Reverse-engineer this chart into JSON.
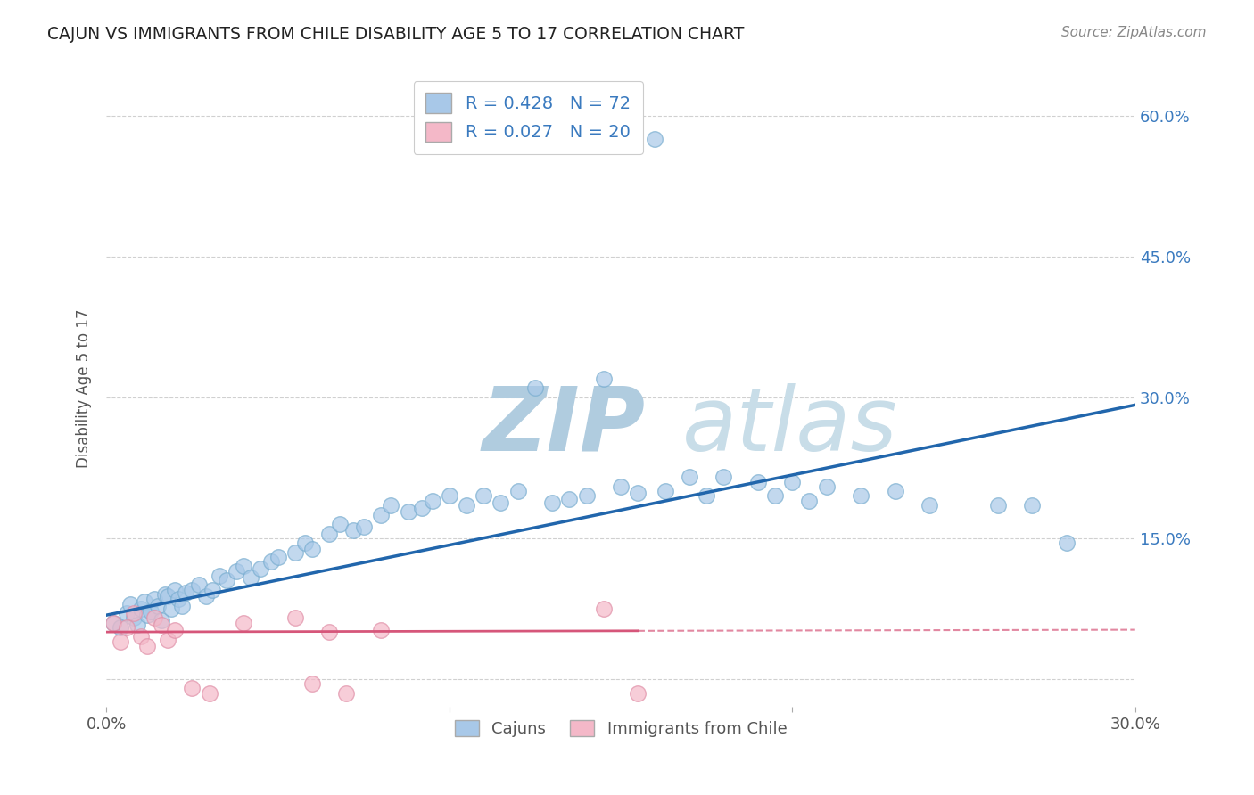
{
  "title": "CAJUN VS IMMIGRANTS FROM CHILE DISABILITY AGE 5 TO 17 CORRELATION CHART",
  "source": "Source: ZipAtlas.com",
  "ylabel_label": "Disability Age 5 to 17",
  "xlim": [
    0,
    0.3
  ],
  "ylim": [
    -0.03,
    0.65
  ],
  "cajun_R": 0.428,
  "cajun_N": 72,
  "chile_R": 0.027,
  "chile_N": 20,
  "cajun_color": "#a8c8e8",
  "cajun_edge_color": "#7aaed0",
  "cajun_line_color": "#2166ac",
  "chile_color": "#f4b8c8",
  "chile_edge_color": "#e090a8",
  "chile_line_color": "#d6567a",
  "watermark": "ZIPatlas",
  "watermark_color_zip": "#b8d4e8",
  "watermark_color_atlas": "#c8dde8",
  "legend_label_cajun": "Cajuns",
  "legend_label_chile": "Immigrants from Chile",
  "background_color": "#ffffff",
  "grid_color": "#d0d0d0",
  "cajun_x": [
    0.002,
    0.004,
    0.006,
    0.007,
    0.008,
    0.009,
    0.01,
    0.011,
    0.012,
    0.013,
    0.014,
    0.015,
    0.016,
    0.017,
    0.018,
    0.019,
    0.02,
    0.021,
    0.022,
    0.023,
    0.025,
    0.027,
    0.029,
    0.031,
    0.033,
    0.035,
    0.038,
    0.04,
    0.042,
    0.045,
    0.048,
    0.05,
    0.055,
    0.058,
    0.06,
    0.065,
    0.068,
    0.072,
    0.075,
    0.08,
    0.083,
    0.088,
    0.092,
    0.095,
    0.1,
    0.105,
    0.11,
    0.115,
    0.12,
    0.13,
    0.135,
    0.14,
    0.15,
    0.155,
    0.16,
    0.163,
    0.17,
    0.175,
    0.18,
    0.19,
    0.195,
    0.2,
    0.205,
    0.21,
    0.22,
    0.23,
    0.24,
    0.26,
    0.27,
    0.28,
    0.125,
    0.145
  ],
  "cajun_y": [
    0.06,
    0.055,
    0.07,
    0.08,
    0.065,
    0.058,
    0.075,
    0.082,
    0.068,
    0.072,
    0.085,
    0.078,
    0.062,
    0.09,
    0.088,
    0.075,
    0.095,
    0.085,
    0.078,
    0.092,
    0.095,
    0.1,
    0.088,
    0.095,
    0.11,
    0.105,
    0.115,
    0.12,
    0.108,
    0.118,
    0.125,
    0.13,
    0.135,
    0.145,
    0.138,
    0.155,
    0.165,
    0.158,
    0.162,
    0.175,
    0.185,
    0.178,
    0.182,
    0.19,
    0.195,
    0.185,
    0.195,
    0.188,
    0.2,
    0.188,
    0.192,
    0.195,
    0.205,
    0.198,
    0.575,
    0.2,
    0.215,
    0.195,
    0.215,
    0.21,
    0.195,
    0.21,
    0.19,
    0.205,
    0.195,
    0.2,
    0.185,
    0.185,
    0.185,
    0.145,
    0.31,
    0.32
  ],
  "chile_x": [
    0.002,
    0.004,
    0.006,
    0.008,
    0.01,
    0.012,
    0.014,
    0.016,
    0.018,
    0.02,
    0.025,
    0.03,
    0.04,
    0.055,
    0.06,
    0.065,
    0.07,
    0.08,
    0.145,
    0.155
  ],
  "chile_y": [
    0.06,
    0.04,
    0.055,
    0.07,
    0.045,
    0.035,
    0.065,
    0.058,
    0.042,
    0.052,
    -0.01,
    -0.015,
    0.06,
    0.065,
    -0.005,
    0.05,
    -0.015,
    0.052,
    0.075,
    -0.015
  ]
}
